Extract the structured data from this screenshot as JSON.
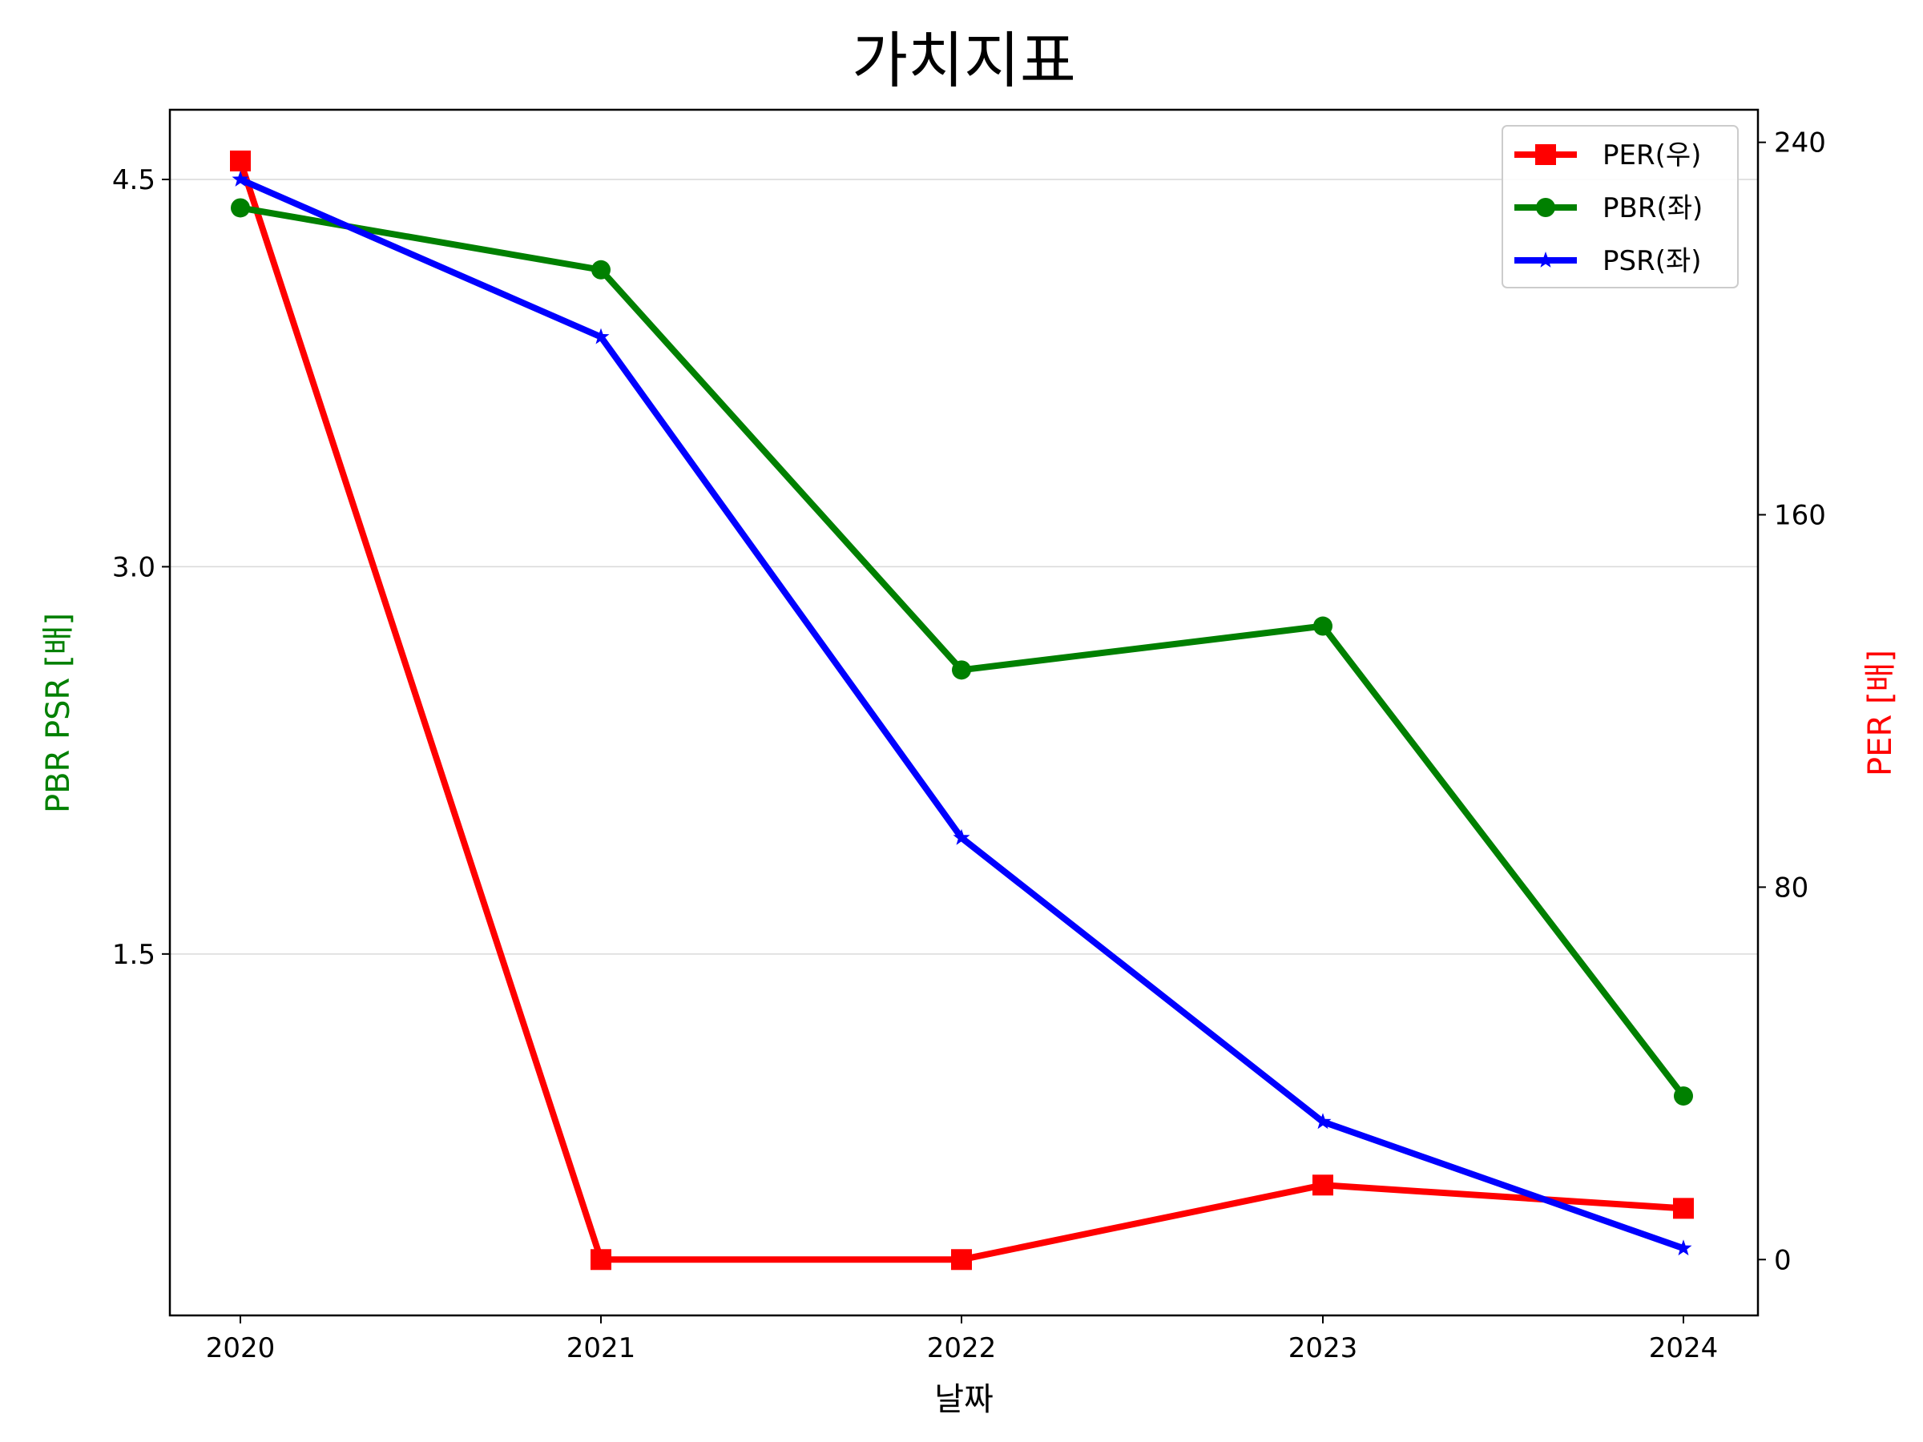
{
  "chart_data": {
    "type": "line",
    "title": "가치지표",
    "xlabel": "날짜",
    "ylabel_left": "PBR PSR [배]",
    "ylabel_right": "PER [배]",
    "x": [
      "2020",
      "2021",
      "2022",
      "2023",
      "2024"
    ],
    "y_left": {
      "ylim": [
        0.1,
        4.77
      ],
      "ticks": [
        "1.5",
        "3.0",
        "4.5"
      ],
      "tick_values": [
        1.5,
        3.0,
        4.5
      ]
    },
    "y_right": {
      "ylim": [
        -12,
        247
      ],
      "ticks": [
        "0",
        "80",
        "160",
        "240"
      ],
      "tick_values": [
        0,
        80,
        160,
        240
      ]
    },
    "grid": "horizontal-left",
    "legend_position": "top-right",
    "series": [
      {
        "name": "PER(우)",
        "axis": "right",
        "color": "#ff0000",
        "marker": "square",
        "values": [
          236,
          0,
          0,
          16,
          11
        ]
      },
      {
        "name": "PBR(좌)",
        "axis": "left",
        "color": "#008000",
        "marker": "circle",
        "values": [
          4.39,
          4.15,
          2.6,
          2.77,
          0.95
        ]
      },
      {
        "name": "PSR(좌)",
        "axis": "left",
        "color": "#0000ff",
        "marker": "star",
        "values": [
          4.5,
          3.89,
          1.95,
          0.85,
          0.36
        ]
      }
    ]
  }
}
